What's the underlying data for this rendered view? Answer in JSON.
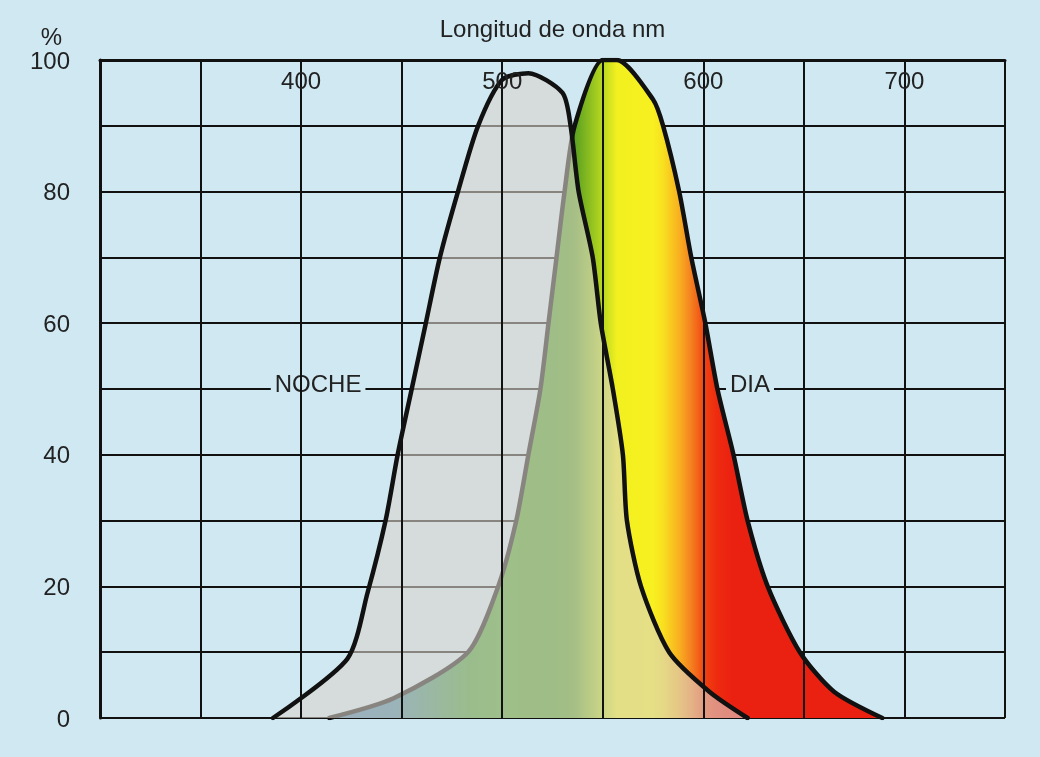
{
  "chart_data": {
    "type": "area",
    "xlabel": "Longitud de onda nm",
    "ylabel": "%",
    "xlim": [
      300,
      750
    ],
    "xticks": [
      {
        "value": 300,
        "label": null
      },
      {
        "value": 350,
        "label": null
      },
      400,
      {
        "value": 450,
        "label": null
      },
      500,
      {
        "value": 550,
        "label": null
      },
      600,
      {
        "value": 650,
        "label": null
      },
      700,
      {
        "value": 750,
        "label": null
      }
    ],
    "ylim": [
      0,
      100
    ],
    "yticks": [
      0,
      {
        "value": 10,
        "label": null
      },
      20,
      {
        "value": 30,
        "label": null
      },
      40,
      {
        "value": 50,
        "label": null
      },
      60,
      {
        "value": 70,
        "label": null
      },
      80,
      {
        "value": 90,
        "label": null
      },
      100
    ],
    "grid": true,
    "legend": false,
    "marker": "none",
    "line_style": "solid",
    "series": [
      {
        "name": "NOCHE",
        "color": "#d8d4cc",
        "x": [
          386,
          423,
          433,
          442,
          448,
          455,
          462,
          469,
          478,
          488,
          500,
          513,
          530,
          534,
          538,
          545,
          549,
          555,
          560,
          562,
          569,
          583,
          603,
          622
        ],
        "values": [
          0,
          9,
          19,
          30,
          40,
          50,
          60,
          70,
          80,
          90,
          97,
          98,
          95,
          90,
          80,
          70,
          60,
          50,
          40,
          30,
          20,
          10,
          4,
          0
        ]
      },
      {
        "name": "DIA",
        "x": [
          414,
          446,
          483,
          498,
          507,
          513,
          519,
          523,
          527,
          531,
          536,
          550,
          557,
          575,
          580,
          588,
          594,
          601,
          607,
          615,
          622,
          632,
          648,
          665,
          689
        ],
        "values": [
          0,
          3,
          10,
          20,
          30,
          40,
          50,
          60,
          70,
          80,
          90,
          100,
          100,
          94,
          90,
          80,
          70,
          60,
          50,
          40,
          30,
          20,
          10,
          4,
          0
        ],
        "colors": [
          "#3f78a8",
          "#3f82a2",
          "#3e9a30",
          "#45a02a",
          "#48a022",
          "#4a9c20",
          "#4a9c20",
          "#4a9c20",
          "#4a9c20",
          "#4e9e20",
          "#5aa020",
          "#b8d820",
          "#f2f020",
          "#f8f020",
          "#f8e020",
          "#f8b020",
          "#f58020",
          "#f04010",
          "#ee2a10",
          "#ea2010",
          "#ea2010",
          "#ea2010",
          "#ea2010",
          "#ea2010",
          "#ea2010"
        ]
      }
    ]
  }
}
